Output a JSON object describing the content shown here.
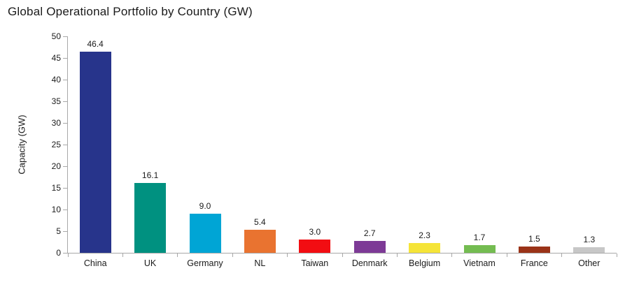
{
  "page": {
    "background": "#ffffff",
    "text_color": "#1a1a1a",
    "axis_color": "#a8a8a8"
  },
  "chart_data": {
    "type": "bar",
    "title": "Global Operational Portfolio by Country (GW)",
    "xlabel": "",
    "ylabel": "Capacity (GW)",
    "categories": [
      "China",
      "UK",
      "Germany",
      "NL",
      "Taiwan",
      "Denmark",
      "Belgium",
      "Vietnam",
      "France",
      "Other"
    ],
    "values": [
      46.4,
      16.1,
      9.0,
      5.4,
      3.0,
      2.7,
      2.3,
      1.7,
      1.5,
      1.3
    ],
    "value_labels": [
      "46.4",
      "16.1",
      "9.0",
      "5.4",
      "3.0",
      "2.7",
      "2.3",
      "1.7",
      "1.5",
      "1.3"
    ],
    "bar_colors": [
      "#27348B",
      "#009180",
      "#00A5D5",
      "#E97330",
      "#F20D12",
      "#7D3A96",
      "#F5E438",
      "#74BC51",
      "#9A3318",
      "#C7C7C7"
    ],
    "ylim": [
      0,
      50
    ],
    "yticks": [
      0,
      5,
      10,
      15,
      20,
      25,
      30,
      35,
      40,
      45,
      50
    ],
    "grid": false,
    "legend": "none"
  }
}
